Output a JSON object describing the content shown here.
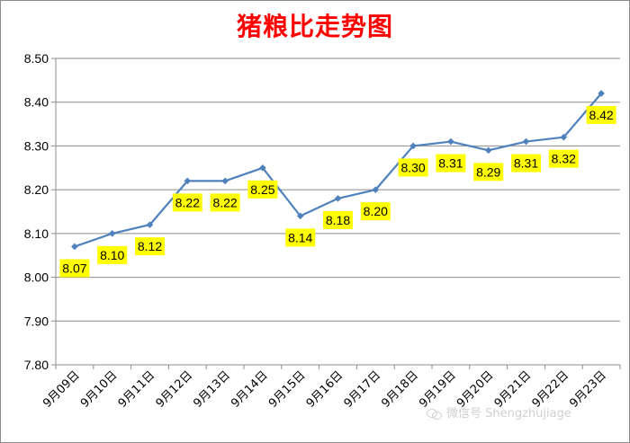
{
  "chart_data": {
    "type": "line",
    "title": "猪粮比走势图",
    "categories": [
      "9月09日",
      "9月10日",
      "9月11日",
      "9月12日",
      "9月13日",
      "9月14日",
      "9月15日",
      "9月16日",
      "9月17日",
      "9月18日",
      "9月19日",
      "9月20日",
      "9月21日",
      "9月22日",
      "9月23日"
    ],
    "values": [
      8.07,
      8.1,
      8.12,
      8.22,
      8.22,
      8.25,
      8.14,
      8.18,
      8.2,
      8.3,
      8.31,
      8.29,
      8.31,
      8.32,
      8.42
    ],
    "value_labels": [
      "8.07",
      "8.10",
      "8.12",
      "8.22",
      "8.22",
      "8.25",
      "8.14",
      "8.18",
      "8.20",
      "8.30",
      "8.31",
      "8.29",
      "8.31",
      "8.32",
      "8.42"
    ],
    "y_ticks": [
      "7.80",
      "7.90",
      "8.00",
      "8.10",
      "8.20",
      "8.30",
      "8.40",
      "8.50"
    ],
    "ylim": [
      7.8,
      8.5
    ],
    "grid": true,
    "line_color": "#4f81bd",
    "label_bg_color": "#ffff00",
    "title_color": "#ff0000"
  },
  "watermark": {
    "text": "微信号 Shengzhujiage"
  }
}
